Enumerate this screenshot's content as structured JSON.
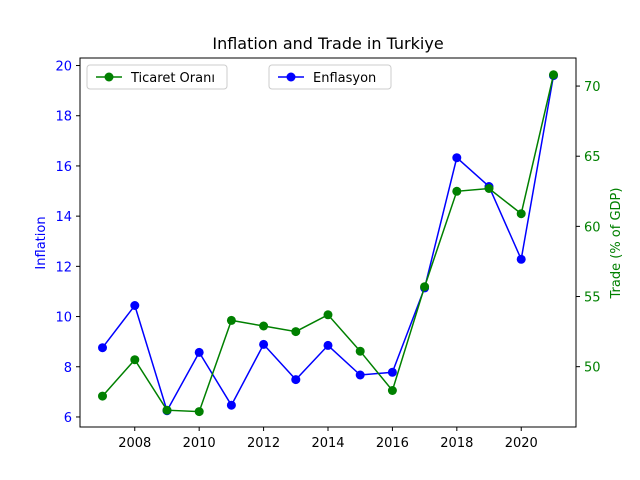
{
  "chart_data": {
    "type": "line",
    "title": "Inflation and Trade in Turkiye",
    "x": [
      2007,
      2008,
      2009,
      2010,
      2011,
      2012,
      2013,
      2014,
      2015,
      2016,
      2017,
      2018,
      2019,
      2020,
      2021
    ],
    "x_ticks": [
      "2008",
      "2010",
      "2012",
      "2014",
      "2016",
      "2018",
      "2020"
    ],
    "xlim": [
      2006.3,
      2021.7
    ],
    "left_axis": {
      "label": "Inflation",
      "color": "#0000ff",
      "ylim": [
        5.6,
        20.3
      ],
      "ticks": [
        "6",
        "8",
        "10",
        "12",
        "14",
        "16",
        "18",
        "20"
      ]
    },
    "right_axis": {
      "label": "Trade (% of GDP)",
      "color": "#008000",
      "ylim": [
        45.7,
        72.0
      ],
      "ticks": [
        "50",
        "55",
        "60",
        "65",
        "70"
      ]
    },
    "series": [
      {
        "name": "Enflasyon",
        "axis": "left",
        "color": "#0000ff",
        "values": [
          8.76,
          10.44,
          6.25,
          8.57,
          6.47,
          8.89,
          7.49,
          8.85,
          7.67,
          7.78,
          11.14,
          16.33,
          15.18,
          12.28,
          19.6
        ]
      },
      {
        "name": "Ticaret Oranı",
        "axis": "right",
        "color": "#008000",
        "values": [
          47.9,
          50.5,
          46.9,
          46.8,
          53.3,
          52.9,
          52.5,
          53.7,
          51.1,
          48.3,
          55.7,
          62.5,
          62.7,
          60.9,
          70.8
        ]
      }
    ],
    "legend": [
      "left-top",
      "center-top"
    ]
  }
}
